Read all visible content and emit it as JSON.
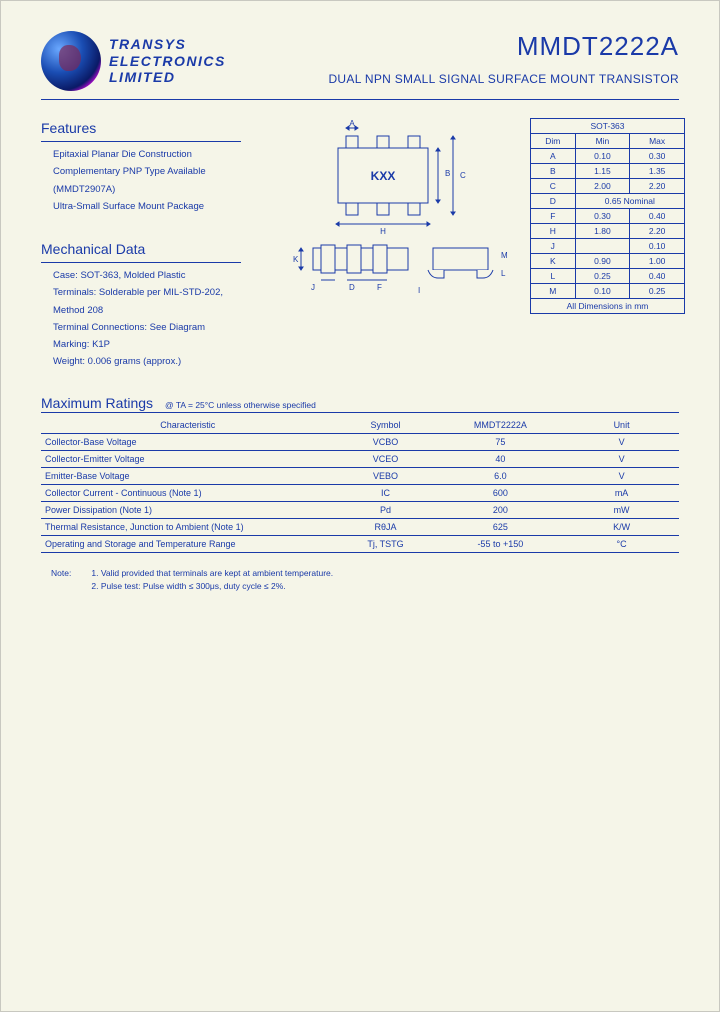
{
  "company": {
    "l1": "TRANSYS",
    "l2": "ELECTRONICS",
    "l3": "LIMITED"
  },
  "partno": "MMDT2222A",
  "subtitle": "DUAL NPN SMALL SIGNAL SURFACE MOUNT TRANSISTOR",
  "sections": {
    "features": "Features",
    "mech": "Mechanical Data",
    "ratings": "Maximum Ratings",
    "ratings_cond": "@ TA = 25°C unless otherwise specified"
  },
  "features": [
    "Epitaxial Planar Die Construction",
    "Complementary PNP Type Available",
    "(MMDT2907A)",
    "Ultra-Small Surface Mount Package"
  ],
  "mech": [
    "Case: SOT-363, Molded Plastic",
    "Terminals: Solderable per MIL-STD-202,",
    "Method 208",
    "Terminal Connections: See Diagram",
    "Marking: K1P",
    "Weight: 0.006 grams (approx.)"
  ],
  "pkg_marking": "KXX",
  "dims": {
    "title": "SOT-363",
    "cols": [
      "Dim",
      "Min",
      "Max"
    ],
    "rows": [
      [
        "A",
        "0.10",
        "0.30"
      ],
      [
        "B",
        "1.15",
        "1.35"
      ],
      [
        "C",
        "2.00",
        "2.20"
      ],
      [
        "D",
        "0.65 Nominal",
        ""
      ],
      [
        "F",
        "0.30",
        "0.40"
      ],
      [
        "H",
        "1.80",
        "2.20"
      ],
      [
        "J",
        "",
        "0.10"
      ],
      [
        "K",
        "0.90",
        "1.00"
      ],
      [
        "L",
        "0.25",
        "0.40"
      ],
      [
        "M",
        "0.10",
        "0.25"
      ]
    ],
    "footer": "All Dimensions in mm"
  },
  "ratings": {
    "cols": [
      "Characteristic",
      "Symbol",
      "MMDT2222A",
      "Unit"
    ],
    "rows": [
      [
        "Collector-Base Voltage",
        "VCBO",
        "75",
        "V"
      ],
      [
        "Collector-Emitter Voltage",
        "VCEO",
        "40",
        "V"
      ],
      [
        "Emitter-Base Voltage",
        "VEBO",
        "6.0",
        "V"
      ],
      [
        "Collector Current - Continuous (Note 1)",
        "IC",
        "600",
        "mA"
      ],
      [
        "Power Dissipation (Note 1)",
        "Pd",
        "200",
        "mW"
      ],
      [
        "Thermal Resistance, Junction to Ambient (Note 1)",
        "RθJA",
        "625",
        "K/W"
      ],
      [
        "Operating and Storage and Temperature Range",
        "Tj, TSTG",
        "-55 to +150",
        "°C"
      ]
    ]
  },
  "notes": {
    "lbl": "Note:",
    "n1": "1.  Valid provided that terminals are kept at ambient temperature.",
    "n2": "2.  Pulse test: Pulse width ≤ 300μs, duty cycle ≤ 2%."
  },
  "colors": {
    "ink": "#1a3aa8",
    "paper": "#f5f5e8"
  }
}
